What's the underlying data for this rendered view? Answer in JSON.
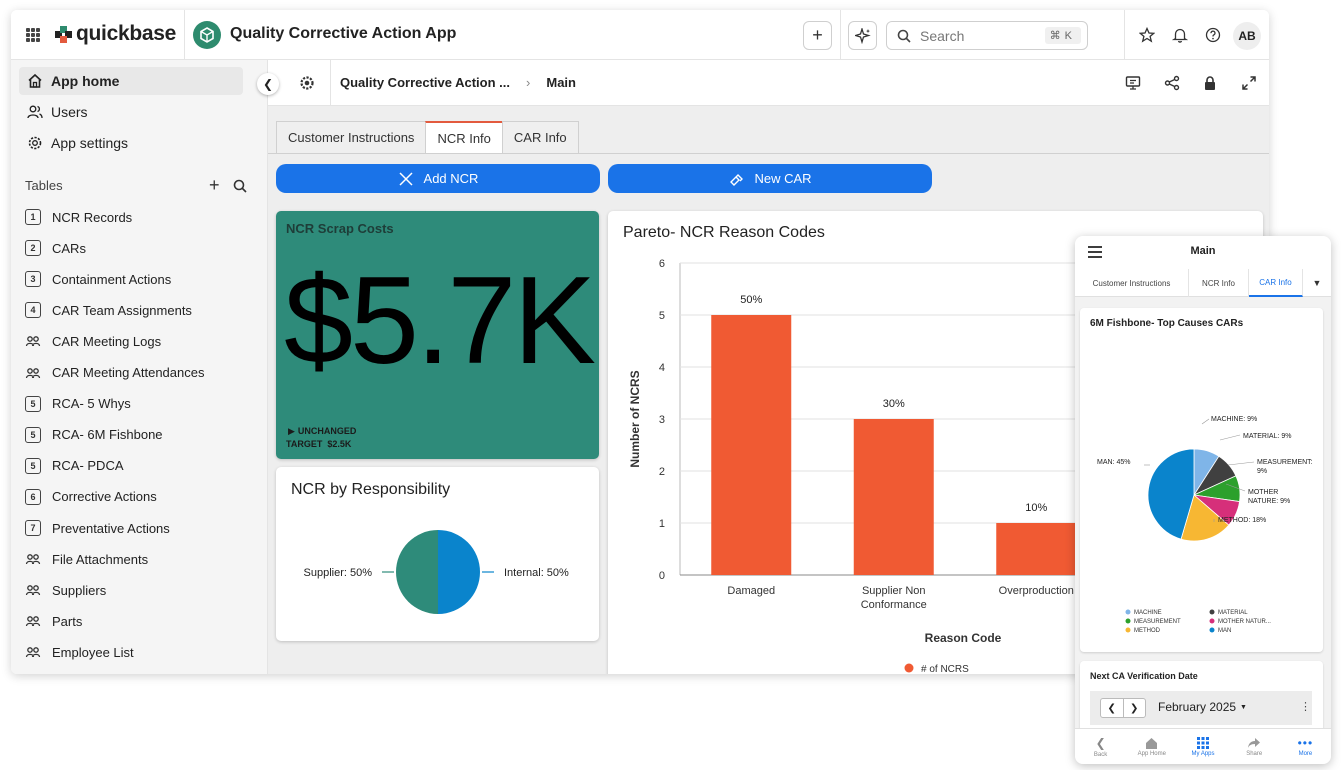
{
  "header": {
    "logo_text": "quickbase",
    "app_title": "Quality Corrective Action App",
    "search_placeholder": "Search",
    "search_shortcut": "⌘K",
    "avatar_initials": "AB"
  },
  "sidebar": {
    "nav": [
      {
        "label": "App home",
        "icon": "home-icon",
        "active": true
      },
      {
        "label": "Users",
        "icon": "users-icon"
      },
      {
        "label": "App settings",
        "icon": "gear-icon"
      }
    ],
    "tables_heading": "Tables",
    "tables": [
      {
        "label": "NCR Records",
        "badge": "1"
      },
      {
        "label": "CARs",
        "badge": "2"
      },
      {
        "label": "Containment Actions",
        "badge": "3"
      },
      {
        "label": "CAR Team Assignments",
        "badge": "4"
      },
      {
        "label": "CAR Meeting Logs",
        "badge": "",
        "icon": "meeting-icon"
      },
      {
        "label": "CAR Meeting Attendances",
        "badge": "",
        "icon": "group-icon"
      },
      {
        "label": "RCA- 5 Whys",
        "badge": "5"
      },
      {
        "label": "RCA- 6M Fishbone",
        "badge": "5"
      },
      {
        "label": "RCA- PDCA",
        "badge": "5"
      },
      {
        "label": "Corrective Actions",
        "badge": "6"
      },
      {
        "label": "Preventative Actions",
        "badge": "7"
      },
      {
        "label": "File Attachments",
        "badge": "",
        "icon": "folder-icon"
      },
      {
        "label": "Suppliers",
        "badge": "",
        "icon": "group-icon"
      },
      {
        "label": "Parts",
        "badge": "",
        "icon": "parts-icon"
      },
      {
        "label": "Employee List",
        "badge": "",
        "icon": "group-icon"
      }
    ]
  },
  "page": {
    "breadcrumb_app": "Quality Corrective Action ...",
    "breadcrumb_page": "Main"
  },
  "tabs": [
    "Customer Instructions",
    "NCR Info",
    "CAR Info"
  ],
  "buttons": {
    "add_ncr": "Add NCR",
    "new_car": "New CAR"
  },
  "scrap": {
    "title": "NCR Scrap Costs",
    "value": "$5.7K",
    "status": "UNCHANGED",
    "target": "TARGET  $2.5K"
  },
  "responsibility": {
    "title": "NCR by Responsibility",
    "label_left": "Supplier: 50%",
    "label_right": "Internal: 50%"
  },
  "chart_data": [
    {
      "type": "bar",
      "title": "Pareto- NCR Reason Codes",
      "xlabel": "Reason Code",
      "ylabel": "Number of NCRS",
      "ylim": [
        0,
        6
      ],
      "yticks": [
        "0",
        "1",
        "2",
        "3",
        "4",
        "5",
        "6"
      ],
      "categories": [
        "Damaged",
        "Supplier Non Conformance",
        "Overproduction"
      ],
      "values": [
        5,
        3,
        1
      ],
      "data_labels": [
        "50%",
        "30%",
        "10%"
      ],
      "legend": "# of NCRS",
      "color": "#f05a33"
    },
    {
      "type": "pie",
      "title": "NCR by Responsibility",
      "labels": [
        "Supplier",
        "Internal"
      ],
      "values": [
        50,
        50
      ],
      "colors": [
        "#2e8b7a",
        "#0a84cc"
      ]
    },
    {
      "type": "pie",
      "title": "6M Fishbone- Top Causes CARs",
      "labels": [
        "MACHINE",
        "MATERIAL",
        "MEASUREMENT",
        "MOTHER NATURE",
        "METHOD",
        "MAN"
      ],
      "values": [
        9,
        9,
        9,
        9,
        18,
        45
      ],
      "colors": [
        "#7fb5e8",
        "#404040",
        "#2ca02c",
        "#d62f7a",
        "#f7b733",
        "#0a84cc"
      ]
    }
  ],
  "phone": {
    "title": "Main",
    "tabs": [
      "Customer Instructions",
      "NCR Info",
      "CAR Info"
    ],
    "fishbone_labels": [
      "MACHINE: 9%",
      "MATERIAL: 9%",
      "MEASUREMENT:",
      "9%",
      "MOTHER",
      "NATURE: 9%",
      "METHOD: 18%",
      "MAN: 45%"
    ],
    "legend": [
      "MACHINE",
      "MATERIAL",
      "MEASUREMENT",
      "MOTHER NATUR...",
      "METHOD",
      "MAN"
    ],
    "verification_title": "Next CA Verification Date",
    "month": "February 2025",
    "bottom_nav": [
      "Back",
      "App Home",
      "My Apps",
      "Share",
      "More"
    ]
  }
}
